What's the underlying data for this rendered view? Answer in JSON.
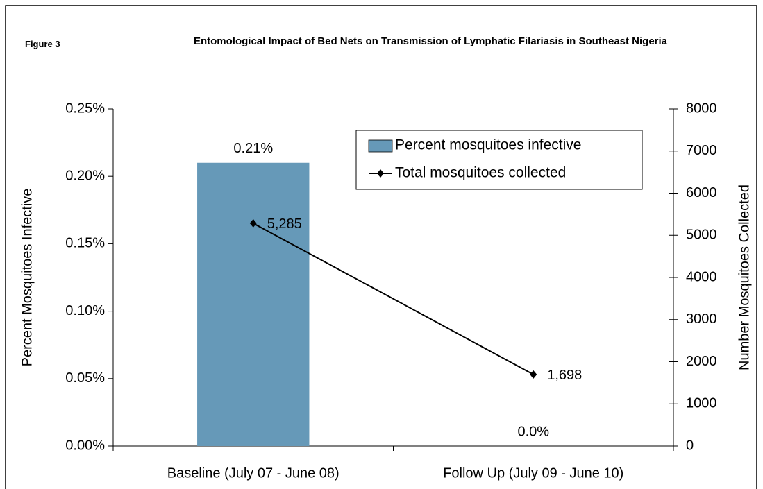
{
  "figure_label": "Figure 3",
  "chart_data": {
    "type": "bar_line",
    "title": "Entomological Impact of Bed Nets on Transmission of Lymphatic Filariasis in Southeast Nigeria",
    "categories": [
      "Baseline (July 07 - June 08)",
      "Follow Up (July 09 - June 10)"
    ],
    "series": [
      {
        "name": "Percent mosquitoes infective",
        "type": "bar",
        "color": "#6699b8",
        "values": [
          0.21,
          0
        ],
        "value_labels": [
          "0.21%",
          "0.0%"
        ]
      },
      {
        "name": "Total mosquitoes collected",
        "type": "line",
        "color": "#000000",
        "axis": "y2",
        "values": [
          5285,
          1698
        ],
        "value_labels": [
          "5,285",
          "1,698"
        ]
      }
    ],
    "ylabel": "Percent Mosquitoes Infective",
    "y2label": "Number Mosquitoes Collected",
    "ylim": [
      0,
      0.25
    ],
    "yticks": [
      {
        "value": 0,
        "label": "0.00%"
      },
      {
        "value": 0.05,
        "label": "0.05%"
      },
      {
        "value": 0.1,
        "label": "0.10%"
      },
      {
        "value": 0.15,
        "label": "0.15%"
      },
      {
        "value": 0.2,
        "label": "0.20%"
      },
      {
        "value": 0.25,
        "label": "0.25%"
      }
    ],
    "y2lim": [
      0,
      8000
    ],
    "y2ticks": [
      0,
      1000,
      2000,
      3000,
      4000,
      5000,
      6000,
      7000,
      8000
    ],
    "grid": false,
    "legend": "top-right"
  }
}
